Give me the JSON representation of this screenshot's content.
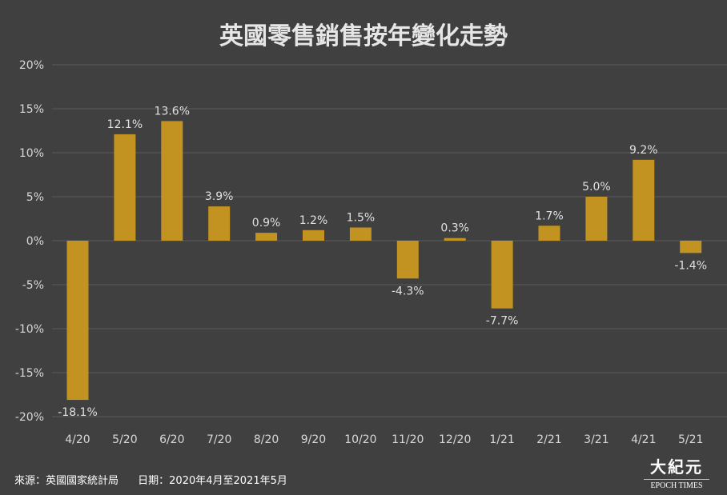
{
  "chart_data": {
    "type": "bar",
    "title": "英國零售銷售按年變化走勢",
    "categories": [
      "4/20",
      "5/20",
      "6/20",
      "7/20",
      "8/20",
      "9/20",
      "10/20",
      "11/20",
      "12/20",
      "1/21",
      "2/21",
      "3/21",
      "4/21",
      "5/21"
    ],
    "values": [
      -18.1,
      12.1,
      13.6,
      3.9,
      0.9,
      1.2,
      1.5,
      -4.3,
      0.3,
      -7.7,
      1.7,
      5.0,
      9.2,
      -1.4
    ],
    "data_labels": [
      "-18.1%",
      "12.1%",
      "13.6%",
      "3.9%",
      "0.9%",
      "1.2%",
      "1.5%",
      "-4.3%",
      "0.3%",
      "-7.7%",
      "1.7%",
      "5.0%",
      "9.2%",
      "-1.4%"
    ],
    "yticks": [
      20,
      15,
      10,
      5,
      0,
      -5,
      -10,
      -15,
      -20
    ],
    "ytick_labels": [
      "20%",
      "15%",
      "10%",
      "5%",
      "0%",
      "-5%",
      "-10%",
      "-15%",
      "-20%"
    ],
    "ylim": [
      -20,
      20
    ],
    "grid": true,
    "xlabel": "",
    "ylabel": "",
    "bar_color": "#C29321"
  },
  "footer": {
    "source": "來源：英國國家統計局",
    "date": "日期：2020年4月至2021年5月"
  },
  "logo": {
    "cn": "大紀元",
    "en": "EPOCH TIMES"
  }
}
